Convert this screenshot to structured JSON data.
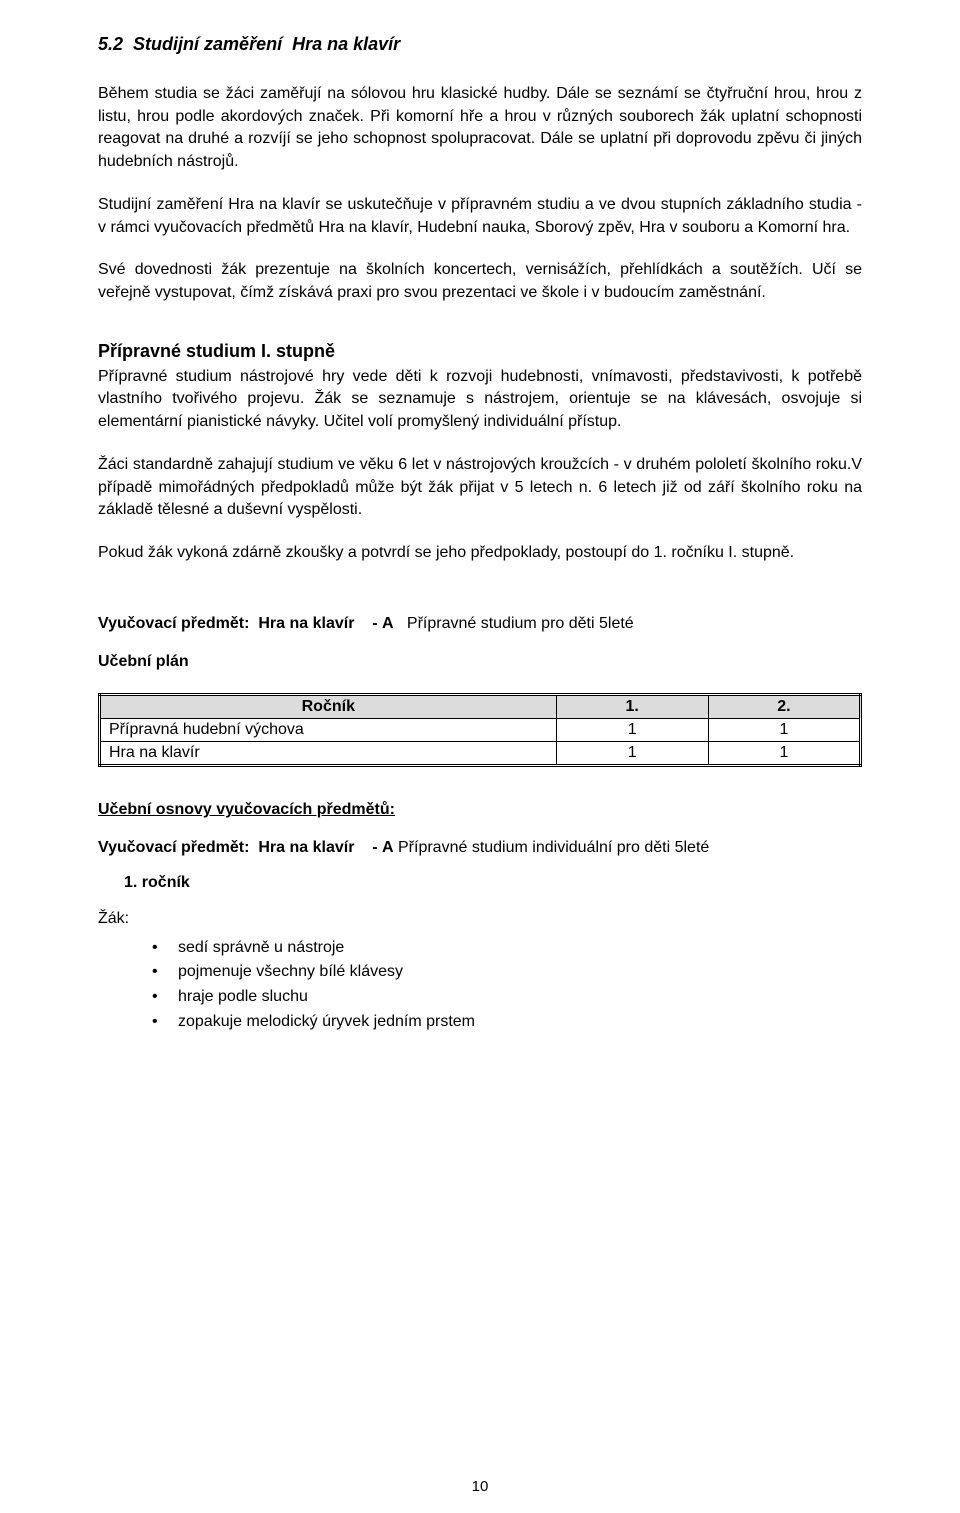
{
  "section": {
    "number": "5.2",
    "title_label": "Studijní zaměření",
    "title_name": "Hra na klavír"
  },
  "paragraphs": {
    "p1": "Během studia se žáci zaměřují na sólovou hru klasické hudby. Dále se seznámí se čtyřruční hrou, hrou z listu, hrou podle akordových značek. Při komorní hře a hrou v různých souborech žák uplatní schopnosti reagovat na druhé a rozvíjí se jeho schopnost spolupracovat. Dále se uplatní při doprovodu zpěvu či jiných hudebních nástrojů.",
    "p2": "Studijní zaměření Hra na klavír se uskutečňuje v přípravném studiu a ve dvou stupních základního studia - v rámci vyučovacích předmětů Hra na klavír, Hudební nauka, Sborový zpěv, Hra v souboru a Komorní hra.",
    "p3": "Své dovednosti žák prezentuje na školních koncertech, vernisážích, přehlídkách a soutěžích. Učí se veřejně vystupovat, čímž získává praxi pro svou prezentaci ve škole i v budoucím zaměstnání.",
    "prep_heading": "Přípravné studium I. stupně",
    "p4": "Přípravné studium nástrojové hry vede děti k rozvoji hudebnosti, vnímavosti, představivosti, k potřebě vlastního tvořivého projevu. Žák se seznamuje s nástrojem, orientuje se na klávesách, osvojuje si elementární pianistické návyky. Učitel volí promyšlený individuální přístup.",
    "p5": "Žáci standardně zahajují studium ve věku 6 let v nástrojových kroužcích - v druhém pololetí školního roku.V případě mimořádných předpokladů může být žák přijat v 5 letech n. 6 letech již od září školního roku na základě tělesné a duševní vyspělosti.",
    "p6": "Pokud žák vykoná zdárně zkoušky a potvrdí se jeho předpoklady, postoupí do 1. ročníku I. stupně."
  },
  "subject1": {
    "label": "Vyučovací předmět:",
    "name": "Hra na klavír",
    "dash": "-",
    "variant_letter": "A",
    "variant_desc": "Přípravné studium pro děti 5leté"
  },
  "plan": {
    "label": "Učební plán",
    "columns": [
      "Ročník",
      "1.",
      "2."
    ],
    "rows": [
      {
        "name": "Přípravná hudební výchova",
        "c1": "1",
        "c2": "1"
      },
      {
        "name": "Hra na klavír",
        "c1": "1",
        "c2": "1"
      }
    ],
    "col_widths": [
      "60%",
      "20%",
      "20%"
    ]
  },
  "osnovy": {
    "label": "Učební osnovy vyučovacích předmětů:"
  },
  "subject2": {
    "label": "Vyučovací předmět:",
    "name": "Hra na klavír",
    "dash": "-",
    "variant_letter": "A",
    "variant_desc": "Přípravné studium individuální pro děti 5leté"
  },
  "grade": {
    "label": "1. ročník"
  },
  "zak_label": "Žák:",
  "bullets": [
    "sedí správně u nástroje",
    "pojmenuje všechny bílé klávesy",
    "hraje podle sluchu",
    "zopakuje melodický úryvek jedním prstem"
  ],
  "page_number": "10",
  "colors": {
    "header_bg": "#dcdcdc",
    "text": "#000000",
    "bg": "#ffffff"
  }
}
